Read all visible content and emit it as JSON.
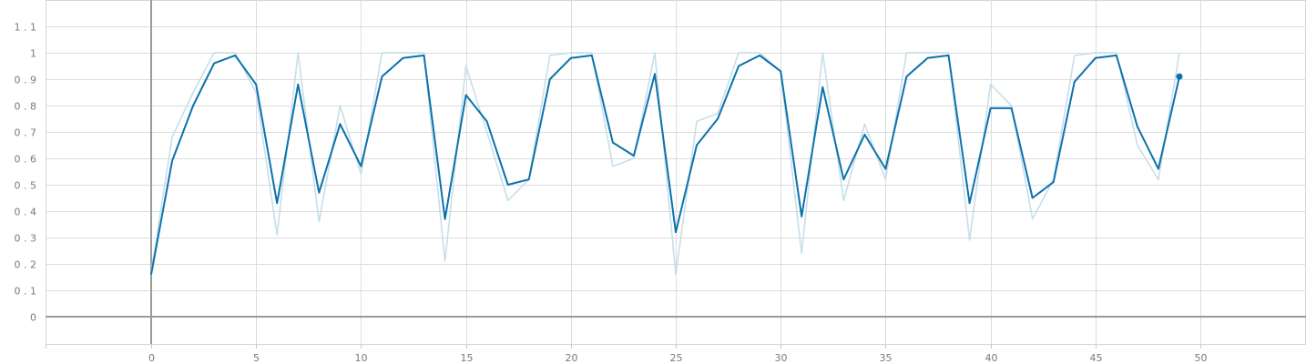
{
  "chart_data": {
    "type": "line",
    "xlim": [
      -5,
      55
    ],
    "ylim": [
      -0.1,
      1.15
    ],
    "x_ticks": [
      0,
      5,
      10,
      15,
      20,
      25,
      30,
      35,
      40,
      45,
      50
    ],
    "y_ticks": [
      0,
      0.1,
      0.2,
      0.3,
      0.4,
      0.5,
      0.6,
      0.7,
      0.8,
      0.9,
      1,
      1.1
    ],
    "grid": true,
    "colors": {
      "raw": "#c6dfe9",
      "smoothed": "#0b72ac",
      "grid": "#dcdcdc",
      "axis": "#9a9a9a"
    },
    "series": [
      {
        "role": "raw",
        "x": [
          0,
          1,
          2,
          3,
          4,
          5,
          6,
          7,
          8,
          9,
          10,
          11,
          12,
          13,
          14,
          15,
          16,
          17,
          18,
          19,
          20,
          21,
          22,
          23,
          24,
          25,
          26,
          27,
          28,
          29,
          30,
          31,
          32,
          33,
          34,
          35,
          36,
          37,
          38,
          39,
          40,
          41,
          42,
          43,
          44,
          45,
          46,
          47,
          48,
          49
        ],
        "values": [
          0.17,
          0.68,
          0.85,
          1.0,
          1.0,
          0.85,
          0.31,
          1.0,
          0.36,
          0.8,
          0.54,
          1.0,
          1.0,
          1.0,
          0.21,
          0.95,
          0.7,
          0.44,
          0.52,
          0.99,
          1.0,
          1.0,
          0.57,
          0.6,
          1.0,
          0.16,
          0.74,
          0.77,
          1.0,
          1.0,
          0.93,
          0.24,
          1.0,
          0.44,
          0.73,
          0.52,
          1.0,
          1.0,
          1.0,
          0.29,
          0.88,
          0.8,
          0.37,
          0.52,
          0.99,
          1.0,
          1.0,
          0.65,
          0.52,
          1.0
        ]
      },
      {
        "role": "smoothed",
        "x": [
          0,
          1,
          2,
          3,
          4,
          5,
          6,
          7,
          8,
          9,
          10,
          11,
          12,
          13,
          14,
          15,
          16,
          17,
          18,
          19,
          20,
          21,
          22,
          23,
          24,
          25,
          26,
          27,
          28,
          29,
          30,
          31,
          32,
          33,
          34,
          35,
          36,
          37,
          38,
          39,
          40,
          41,
          42,
          43,
          44,
          45,
          46,
          47,
          48,
          49
        ],
        "values": [
          0.16,
          0.59,
          0.8,
          0.96,
          0.99,
          0.88,
          0.43,
          0.88,
          0.47,
          0.73,
          0.57,
          0.91,
          0.98,
          0.99,
          0.37,
          0.84,
          0.74,
          0.5,
          0.52,
          0.9,
          0.98,
          0.99,
          0.66,
          0.61,
          0.92,
          0.32,
          0.65,
          0.75,
          0.95,
          0.99,
          0.93,
          0.38,
          0.87,
          0.52,
          0.69,
          0.56,
          0.91,
          0.98,
          0.99,
          0.43,
          0.79,
          0.79,
          0.45,
          0.51,
          0.89,
          0.98,
          0.99,
          0.72,
          0.56,
          0.91
        ]
      }
    ]
  }
}
